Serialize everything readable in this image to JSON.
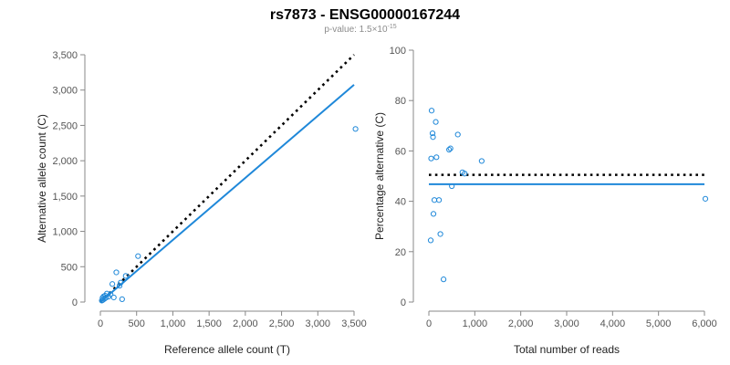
{
  "title": "rs7873 - ENSG00000167244",
  "subtitle": {
    "prefix": "p-value: 1.5×10",
    "exponent": "-15"
  },
  "colors": {
    "points": "#1f88d9",
    "fit": "#1f88d9",
    "reference": "#000000",
    "axis": "#888888",
    "tick_text": "#555555"
  },
  "chart_data": [
    {
      "type": "scatter",
      "name": "left",
      "xlabel": "Reference allele count (T)",
      "ylabel": "Alternative allele count (C)",
      "xlim": [
        0,
        3500
      ],
      "ylim": [
        0,
        3500
      ],
      "xticks": [
        0,
        500,
        1000,
        1500,
        2000,
        2500,
        3000,
        3500
      ],
      "xtick_labels": [
        "0",
        "500",
        "1,000",
        "1,500",
        "2,000",
        "2,500",
        "3,000",
        "3,500"
      ],
      "yticks": [
        0,
        500,
        1000,
        1500,
        2000,
        2500,
        3000,
        3500
      ],
      "ytick_labels": [
        "0",
        "500",
        "1,000",
        "1,500",
        "2,000",
        "2,500",
        "3,000",
        "3,500"
      ],
      "points": [
        {
          "x": 20,
          "y": 20
        },
        {
          "x": 30,
          "y": 60
        },
        {
          "x": 35,
          "y": 30
        },
        {
          "x": 45,
          "y": 80
        },
        {
          "x": 55,
          "y": 45
        },
        {
          "x": 65,
          "y": 90
        },
        {
          "x": 75,
          "y": 60
        },
        {
          "x": 90,
          "y": 120
        },
        {
          "x": 110,
          "y": 75
        },
        {
          "x": 140,
          "y": 110
        },
        {
          "x": 165,
          "y": 255
        },
        {
          "x": 185,
          "y": 65
        },
        {
          "x": 220,
          "y": 420
        },
        {
          "x": 265,
          "y": 230
        },
        {
          "x": 280,
          "y": 275
        },
        {
          "x": 300,
          "y": 40
        },
        {
          "x": 350,
          "y": 370
        },
        {
          "x": 520,
          "y": 650
        },
        {
          "x": 3520,
          "y": 2450
        }
      ],
      "fit_line": [
        {
          "x": 0,
          "y": 0
        },
        {
          "x": 3500,
          "y": 3075
        }
      ],
      "reference_line": [
        {
          "x": 0,
          "y": 0
        },
        {
          "x": 3500,
          "y": 3500
        }
      ]
    },
    {
      "type": "scatter",
      "name": "right",
      "xlabel": "Total number of reads",
      "ylabel": "Percentage alternative (C)",
      "xlim": [
        0,
        6000
      ],
      "ylim": [
        0,
        100
      ],
      "xticks": [
        0,
        1000,
        2000,
        3000,
        4000,
        5000,
        6000
      ],
      "xtick_labels": [
        "0",
        "1,000",
        "2,000",
        "3,000",
        "4,000",
        "5,000",
        "6,000"
      ],
      "yticks": [
        0,
        20,
        40,
        60,
        80,
        100
      ],
      "ytick_labels": [
        "0",
        "20",
        "40",
        "60",
        "80",
        "100"
      ],
      "points": [
        {
          "x": 40,
          "y": 24.5
        },
        {
          "x": 50,
          "y": 57
        },
        {
          "x": 60,
          "y": 76
        },
        {
          "x": 80,
          "y": 67
        },
        {
          "x": 90,
          "y": 65.5
        },
        {
          "x": 100,
          "y": 35
        },
        {
          "x": 120,
          "y": 40.5
        },
        {
          "x": 150,
          "y": 71.5
        },
        {
          "x": 165,
          "y": 57.5
        },
        {
          "x": 220,
          "y": 40.5
        },
        {
          "x": 250,
          "y": 27
        },
        {
          "x": 320,
          "y": 9
        },
        {
          "x": 440,
          "y": 60.5
        },
        {
          "x": 470,
          "y": 61
        },
        {
          "x": 500,
          "y": 46
        },
        {
          "x": 630,
          "y": 66.5
        },
        {
          "x": 730,
          "y": 51.5
        },
        {
          "x": 780,
          "y": 51
        },
        {
          "x": 1150,
          "y": 56
        },
        {
          "x": 6020,
          "y": 41
        }
      ],
      "fit_line": [
        {
          "x": 0,
          "y": 46.8
        },
        {
          "x": 6000,
          "y": 46.8
        }
      ],
      "reference_line": [
        {
          "x": 0,
          "y": 50.5
        },
        {
          "x": 6000,
          "y": 50.5
        }
      ]
    }
  ]
}
